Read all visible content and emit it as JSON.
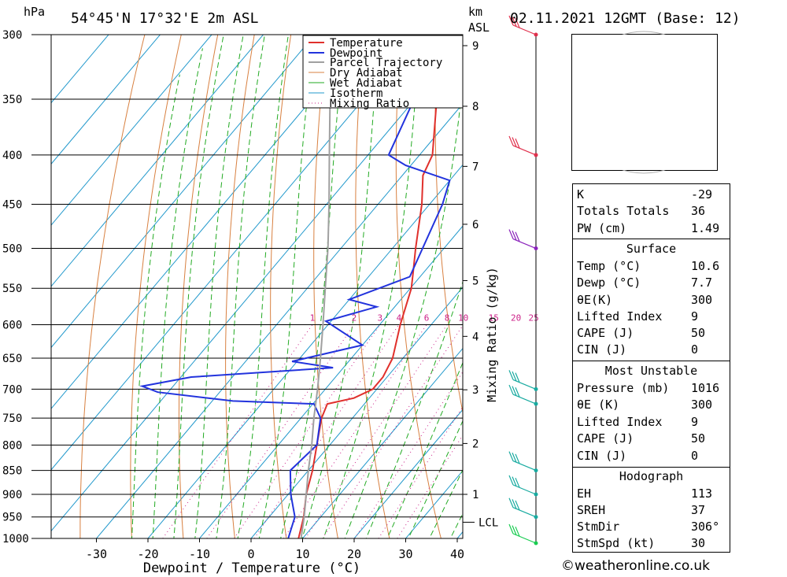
{
  "header": {
    "location": "54°45'N 17°32'E 2m ASL",
    "datetime": "02.11.2021 12GMT (Base: 12)",
    "pressure_unit": "hPa",
    "height_unit": "km",
    "height_unit2": "ASL"
  },
  "chart_data": {
    "type": "skew-t",
    "xlabel": "Dewpoint / Temperature (°C)",
    "ylabel_right": "Mixing Ratio (g/kg)",
    "x_ticks": [
      -30,
      -20,
      -10,
      0,
      10,
      20,
      30,
      40
    ],
    "pressure_levels": [
      300,
      350,
      400,
      450,
      500,
      550,
      600,
      650,
      700,
      750,
      800,
      850,
      900,
      950,
      1000
    ],
    "height_ticks_km": [
      1,
      2,
      3,
      4,
      5,
      6,
      7,
      8,
      9
    ],
    "lcl_label": "LCL",
    "mixing_ratio_labels": [
      "1",
      "2",
      "3",
      "4",
      "6",
      "8",
      "10",
      "15",
      "20",
      "25"
    ],
    "legend": [
      "Temperature",
      "Dewpoint",
      "Parcel Trajectory",
      "Dry Adiabat",
      "Wet Adiabat",
      "Isotherm",
      "Mixing Ratio"
    ],
    "series": [
      {
        "name": "Temperature",
        "color": "#e0302c",
        "points": [
          [
            1016,
            10.6
          ],
          [
            1000,
            9.2
          ],
          [
            950,
            6.7
          ],
          [
            900,
            3.5
          ],
          [
            850,
            0.8
          ],
          [
            800,
            -2.5
          ],
          [
            750,
            -6.0
          ],
          [
            725,
            -7.2
          ],
          [
            715,
            -3.0
          ],
          [
            700,
            -0.8
          ],
          [
            680,
            -0.8
          ],
          [
            650,
            -2.0
          ],
          [
            600,
            -6.0
          ],
          [
            550,
            -9.8
          ],
          [
            530,
            -12.0
          ],
          [
            500,
            -15.5
          ],
          [
            450,
            -21.5
          ],
          [
            420,
            -26.0
          ],
          [
            400,
            -27.5
          ],
          [
            350,
            -35.8
          ],
          [
            300,
            -44.5
          ]
        ]
      },
      {
        "name": "Dewpoint",
        "color": "#2233dd",
        "points": [
          [
            1016,
            7.7
          ],
          [
            1000,
            7.2
          ],
          [
            950,
            5.0
          ],
          [
            900,
            0.5
          ],
          [
            850,
            -3.5
          ],
          [
            800,
            -2.5
          ],
          [
            750,
            -6.2
          ],
          [
            725,
            -9.8
          ],
          [
            720,
            -26.0
          ],
          [
            705,
            -42.0
          ],
          [
            695,
            -46.0
          ],
          [
            680,
            -38.0
          ],
          [
            665,
            -12.0
          ],
          [
            655,
            -21.0
          ],
          [
            630,
            -10.0
          ],
          [
            595,
            -21.0
          ],
          [
            575,
            -13.5
          ],
          [
            565,
            -20.0
          ],
          [
            535,
            -12.0
          ],
          [
            450,
            -17.5
          ],
          [
            425,
            -20.0
          ],
          [
            410,
            -31.0
          ],
          [
            400,
            -36.0
          ],
          [
            300,
            -45.0
          ]
        ]
      },
      {
        "name": "Parcel Trajectory",
        "color": "#a0a0a0",
        "points": [
          [
            1016,
            10.6
          ],
          [
            950,
            6.8
          ],
          [
            900,
            3.5
          ],
          [
            850,
            0.0
          ],
          [
            800,
            -3.5
          ],
          [
            750,
            -7.5
          ],
          [
            700,
            -11.5
          ],
          [
            650,
            -16.0
          ],
          [
            600,
            -21.0
          ],
          [
            550,
            -26.5
          ],
          [
            500,
            -32.5
          ],
          [
            450,
            -39.5
          ],
          [
            400,
            -47.5
          ],
          [
            350,
            -56.5
          ],
          [
            300,
            -66.5
          ]
        ]
      }
    ],
    "wind_barbs": [
      {
        "p": 300,
        "color": "#e0304c"
      },
      {
        "p": 400,
        "color": "#e0304c"
      },
      {
        "p": 500,
        "color": "#8a22bb"
      },
      {
        "p": 700,
        "color": "#18aaa0"
      },
      {
        "p": 725,
        "color": "#18aaa0"
      },
      {
        "p": 850,
        "color": "#18aaa0"
      },
      {
        "p": 900,
        "color": "#18aaa0"
      },
      {
        "p": 950,
        "color": "#18aaa0"
      },
      {
        "p": 1000,
        "color": "#18cc50"
      }
    ],
    "hodograph": {
      "unit": "kt",
      "rings": [
        "25",
        "50",
        "75"
      ]
    }
  },
  "indices": {
    "rows": [
      {
        "k": "K",
        "v": "-29"
      },
      {
        "k": "Totals Totals",
        "v": "36"
      },
      {
        "k": "PW (cm)",
        "v": "1.49"
      }
    ],
    "surface": {
      "title": "Surface",
      "rows": [
        {
          "k": "Temp (°C)",
          "v": "10.6"
        },
        {
          "k": "Dewp (°C)",
          "v": "7.7"
        },
        {
          "k": "θE(K)",
          "v": "300"
        },
        {
          "k": "Lifted Index",
          "v": "9"
        },
        {
          "k": "CAPE (J)",
          "v": "50"
        },
        {
          "k": "CIN (J)",
          "v": "0"
        }
      ]
    },
    "most_unstable": {
      "title": "Most Unstable",
      "rows": [
        {
          "k": "Pressure (mb)",
          "v": "1016"
        },
        {
          "k": "θE (K)",
          "v": "300"
        },
        {
          "k": "Lifted Index",
          "v": "9"
        },
        {
          "k": "CAPE (J)",
          "v": "50"
        },
        {
          "k": "CIN (J)",
          "v": "0"
        }
      ]
    },
    "hodograph_params": {
      "title": "Hodograph",
      "rows": [
        {
          "k": "EH",
          "v": "113"
        },
        {
          "k": "SREH",
          "v": "37"
        },
        {
          "k": "StmDir",
          "v": "306°"
        },
        {
          "k": "StmSpd (kt)",
          "v": "30"
        }
      ]
    }
  },
  "credit": "©weatheronline.co.uk"
}
